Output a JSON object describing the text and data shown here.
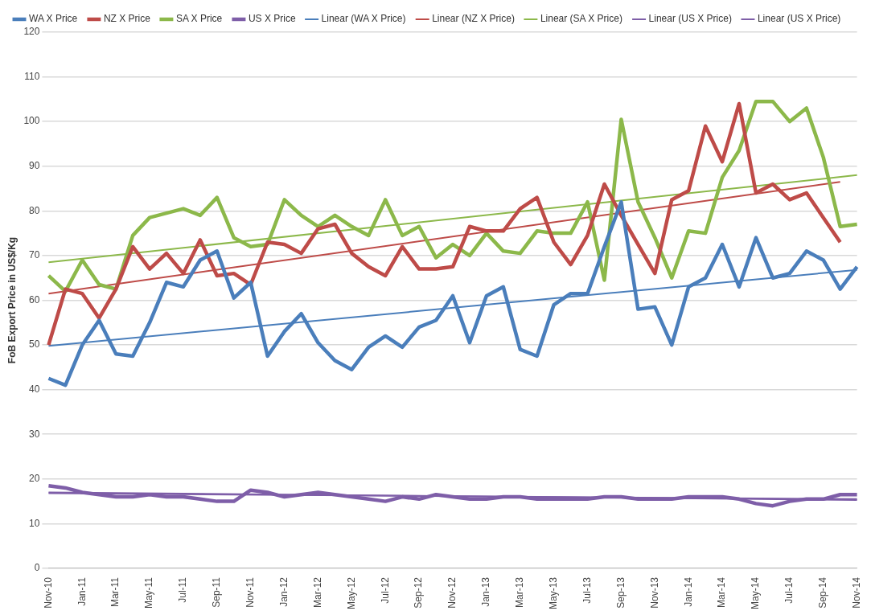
{
  "chart_data": {
    "type": "line",
    "ylabel": "FoB Export Price in US$/Kg",
    "categories": [
      "Nov-10",
      null,
      "Jan-11",
      null,
      "Mar-11",
      null,
      "May-11",
      null,
      "Jul-11",
      null,
      "Sep-11",
      null,
      "Nov-11",
      null,
      "Jan-12",
      null,
      "Mar-12",
      null,
      "May-12",
      null,
      "Jul-12",
      null,
      "Sep-12",
      null,
      "Nov-12",
      null,
      "Jan-13",
      null,
      "Mar-13",
      null,
      "May-13",
      null,
      "Jul-13",
      null,
      "Sep-13",
      null,
      "Nov-13",
      null,
      "Jan-14",
      null,
      "Mar-14",
      null,
      "May-14",
      null,
      "Jul-14",
      null,
      "Sep-14",
      null,
      "Nov-14"
    ],
    "series": [
      {
        "name": "WA X Price",
        "color": "#4a7ebb",
        "values": [
          42.5,
          41,
          50,
          55.5,
          48,
          47.5,
          55,
          64,
          63,
          69,
          71,
          60.5,
          64,
          47.5,
          53,
          57,
          50.5,
          46.5,
          44.5,
          49.5,
          52,
          49.5,
          54,
          55.5,
          61,
          50.5,
          61,
          63,
          49,
          47.5,
          59,
          61.5,
          61.5,
          72,
          82,
          58,
          58.5,
          50,
          63,
          65,
          72.5,
          63,
          74,
          65,
          66,
          71,
          69,
          62.5,
          67.5
        ]
      },
      {
        "name": "NZ X Price",
        "color": "#be4b48",
        "values": [
          50,
          62.5,
          61.5,
          56,
          62.5,
          72,
          67,
          70.5,
          66,
          73.5,
          65.5,
          66,
          63.5,
          73,
          72.5,
          70.5,
          76,
          77,
          70.5,
          67.5,
          65.5,
          72,
          67,
          67,
          67.5,
          76.5,
          75.5,
          75.5,
          80.5,
          83,
          73,
          68,
          74.5,
          86,
          79,
          72.5,
          66,
          82.5,
          84.5,
          99,
          91,
          104,
          84,
          86,
          82.5,
          84,
          78.5,
          73,
          null
        ]
      },
      {
        "name": "SA X Price",
        "color": "#8cb84a",
        "values": [
          65.5,
          62,
          69,
          63.5,
          62.5,
          74.5,
          78.5,
          79.5,
          80.5,
          79,
          83,
          74,
          72,
          72.5,
          82.5,
          79,
          76.5,
          79,
          76.5,
          74.5,
          82.5,
          74.5,
          76.5,
          69.5,
          72.5,
          70,
          75,
          71,
          70.5,
          75.5,
          75,
          75,
          82,
          64.5,
          100.5,
          82,
          74,
          65,
          75.5,
          75,
          87.5,
          93.5,
          104.5,
          104.5,
          100,
          103,
          92,
          76.5,
          77
        ]
      },
      {
        "name": "US X Price",
        "color": "#7e5ea8",
        "values": [
          18.5,
          18,
          17,
          16.5,
          16,
          16,
          16.5,
          16,
          16,
          15.5,
          15,
          15,
          17.5,
          17,
          16,
          16.5,
          17,
          16.5,
          16,
          15.5,
          15,
          16,
          15.5,
          16.5,
          16,
          15.5,
          15.5,
          16,
          16,
          15.5,
          15.5,
          15.5,
          15.5,
          16,
          16,
          15.5,
          15.5,
          15.5,
          16,
          16,
          16,
          15.5,
          14.5,
          14,
          15,
          15.5,
          15.5,
          16.5,
          16.5
        ]
      },
      {
        "name": "Linear (WA X Price)",
        "color": "#4a7ebb",
        "values": [
          49.8,
          null,
          null,
          null,
          null,
          null,
          null,
          null,
          null,
          null,
          null,
          null,
          null,
          null,
          null,
          null,
          null,
          null,
          null,
          null,
          null,
          null,
          null,
          null,
          null,
          null,
          null,
          null,
          null,
          null,
          null,
          null,
          null,
          null,
          null,
          null,
          null,
          null,
          null,
          null,
          null,
          null,
          null,
          null,
          null,
          null,
          null,
          null,
          66.8
        ]
      },
      {
        "name": "Linear (NZ X Price)",
        "color": "#be4b48",
        "values": [
          61.5,
          null,
          null,
          null,
          null,
          null,
          null,
          null,
          null,
          null,
          null,
          null,
          null,
          null,
          null,
          null,
          null,
          null,
          null,
          null,
          null,
          null,
          null,
          null,
          null,
          null,
          null,
          null,
          null,
          null,
          null,
          null,
          null,
          null,
          null,
          null,
          null,
          null,
          null,
          null,
          null,
          null,
          null,
          null,
          null,
          null,
          null,
          86.5,
          null
        ]
      },
      {
        "name": "Linear (SA X Price)",
        "color": "#8cb84a",
        "values": [
          68.5,
          null,
          null,
          null,
          null,
          null,
          null,
          null,
          null,
          null,
          null,
          null,
          null,
          null,
          null,
          null,
          null,
          null,
          null,
          null,
          null,
          null,
          null,
          null,
          null,
          null,
          null,
          null,
          null,
          null,
          null,
          null,
          null,
          null,
          null,
          null,
          null,
          null,
          null,
          null,
          null,
          null,
          null,
          null,
          null,
          null,
          null,
          null,
          88
        ]
      },
      {
        "name": "Linear (US X Price)",
        "color": "#7e5ea8",
        "values": [
          16.8,
          null,
          null,
          null,
          null,
          null,
          null,
          null,
          null,
          null,
          null,
          null,
          null,
          null,
          null,
          null,
          null,
          null,
          null,
          null,
          null,
          null,
          null,
          null,
          null,
          null,
          null,
          null,
          null,
          null,
          null,
          null,
          null,
          null,
          null,
          null,
          null,
          null,
          null,
          null,
          null,
          null,
          null,
          null,
          null,
          null,
          null,
          null,
          15.5
        ]
      },
      {
        "name": "Linear (US X Price)",
        "color": "#7e5ea8",
        "values": [
          17,
          null,
          null,
          null,
          null,
          null,
          null,
          null,
          null,
          null,
          null,
          null,
          null,
          null,
          null,
          null,
          null,
          null,
          null,
          null,
          null,
          null,
          null,
          null,
          null,
          null,
          null,
          null,
          null,
          null,
          null,
          null,
          null,
          null,
          null,
          null,
          null,
          null,
          null,
          null,
          null,
          null,
          null,
          null,
          null,
          null,
          null,
          null,
          15.3
        ]
      }
    ],
    "ylim": [
      0,
      120
    ],
    "yticks": [
      0,
      10,
      20,
      30,
      40,
      50,
      60,
      70,
      80,
      90,
      100,
      110,
      120
    ],
    "grid": "y",
    "legend": "top",
    "marker": "none",
    "line_style": "solid"
  }
}
